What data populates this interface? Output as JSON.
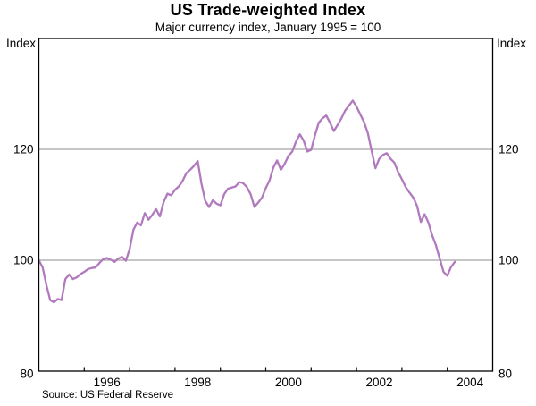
{
  "header": {
    "title": "US Trade-weighted Index",
    "subtitle": "Major currency index, January 1995 = 100"
  },
  "axis_units": {
    "left": "Index",
    "right": "Index"
  },
  "footer": {
    "source": "Source: US Federal Reserve"
  },
  "chart_data": {
    "type": "line",
    "title": "US Trade-weighted Index",
    "subtitle": "Major currency index, January 1995 = 100",
    "source": "Source: US Federal Reserve",
    "xlabel": "",
    "ylabel": "Index",
    "xlim_years": [
      1995,
      2005
    ],
    "ylim": [
      80,
      140
    ],
    "grid": "horizontal",
    "legend": "none",
    "y_gridlines": [
      100,
      120
    ],
    "y_tick_labels": [
      {
        "value": 120,
        "label": "120"
      },
      {
        "value": 100,
        "label": "100"
      },
      {
        "value": 80,
        "label": "80"
      }
    ],
    "x_year_ticks": [
      1996,
      1997,
      1998,
      1999,
      2000,
      2001,
      2002,
      2003,
      2004
    ],
    "x_year_labels": [
      {
        "year": 1996,
        "label": "1996"
      },
      {
        "year": 1998,
        "label": "1998"
      },
      {
        "year": 2000,
        "label": "2000"
      },
      {
        "year": 2002,
        "label": "2002"
      },
      {
        "year": 2004,
        "label": "2004"
      }
    ],
    "line_color": "#b27abe",
    "grid_color": "#8c8c8c",
    "axis_color": "#000000",
    "series": [
      {
        "name": "US trade-weighted index (major currencies)",
        "start": "1995-01",
        "frequency": "monthly",
        "values": [
          100.0,
          98.7,
          95.5,
          92.8,
          92.4,
          93.0,
          92.8,
          96.6,
          97.4,
          96.6,
          96.9,
          97.5,
          97.9,
          98.4,
          98.6,
          98.7,
          99.5,
          100.2,
          100.4,
          100.1,
          99.7,
          100.3,
          100.6,
          99.9,
          102.0,
          105.5,
          106.8,
          106.3,
          108.5,
          107.3,
          108.2,
          109.2,
          107.9,
          110.5,
          112.0,
          111.7,
          112.7,
          113.3,
          114.3,
          115.7,
          116.3,
          117.0,
          117.9,
          113.8,
          110.7,
          109.6,
          110.8,
          110.2,
          109.9,
          111.9,
          112.9,
          113.1,
          113.3,
          114.1,
          113.9,
          113.2,
          111.9,
          109.6,
          110.4,
          111.3,
          113.0,
          114.4,
          116.7,
          118.0,
          116.3,
          117.4,
          118.8,
          119.6,
          121.4,
          122.7,
          121.6,
          119.6,
          119.9,
          122.5,
          124.8,
          125.6,
          126.1,
          124.8,
          123.3,
          124.4,
          125.6,
          127.0,
          127.9,
          128.8,
          127.7,
          126.3,
          124.9,
          122.9,
          119.7,
          116.6,
          118.3,
          119.0,
          119.3,
          118.3,
          117.6,
          115.9,
          114.6,
          113.2,
          112.2,
          111.3,
          109.8,
          106.9,
          108.3,
          106.8,
          104.5,
          102.7,
          100.3,
          97.9,
          97.2,
          98.8,
          99.7
        ]
      }
    ]
  }
}
